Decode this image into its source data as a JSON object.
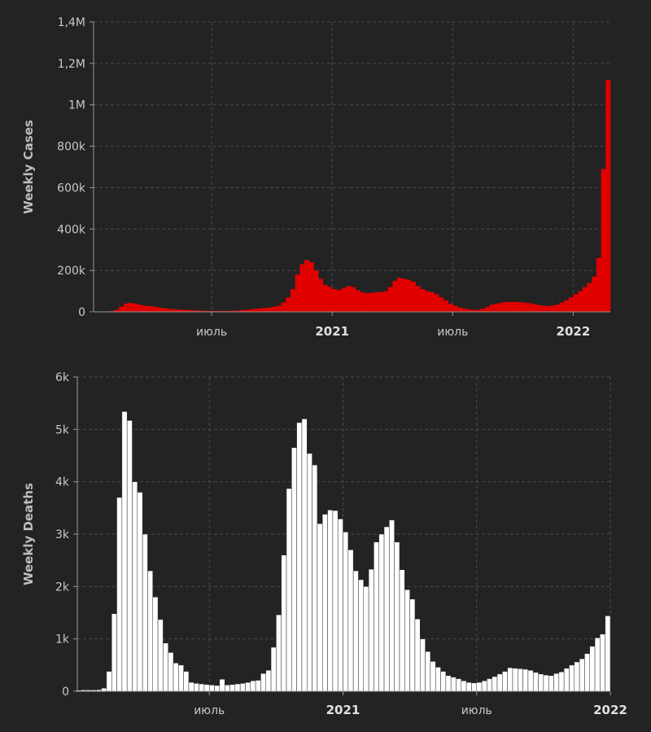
{
  "chart_data": [
    {
      "type": "bar",
      "ylabel": "Weekly Cases",
      "ylim": [
        0,
        1400000
      ],
      "y_ticks": [
        {
          "value": 0,
          "label": "0"
        },
        {
          "value": 200000,
          "label": "200k"
        },
        {
          "value": 400000,
          "label": "400k"
        },
        {
          "value": 600000,
          "label": "600k"
        },
        {
          "value": 800000,
          "label": "800k"
        },
        {
          "value": 1000000,
          "label": "1M"
        },
        {
          "value": 1200000,
          "label": "1,2M"
        },
        {
          "value": 1400000,
          "label": "1,4M"
        }
      ],
      "x_ticks": [
        {
          "week": 26,
          "label": "июль",
          "bold": false
        },
        {
          "week": 52,
          "label": "2021",
          "bold": true
        },
        {
          "week": 78,
          "label": "июль",
          "bold": false
        },
        {
          "week": 104,
          "label": "2022",
          "bold": true
        }
      ],
      "grid": true,
      "color": "#e00000",
      "values": [
        200,
        500,
        1000,
        2000,
        4000,
        10000,
        25000,
        40000,
        43000,
        40000,
        35000,
        30000,
        28000,
        26000,
        22000,
        18000,
        15000,
        13000,
        12000,
        10000,
        9000,
        8000,
        7000,
        6000,
        5000,
        4500,
        4000,
        4000,
        4500,
        5000,
        5500,
        6000,
        8000,
        10000,
        12000,
        15000,
        17000,
        19000,
        21000,
        24000,
        30000,
        45000,
        70000,
        110000,
        180000,
        230000,
        250000,
        240000,
        200000,
        160000,
        130000,
        120000,
        110000,
        105000,
        115000,
        125000,
        120000,
        105000,
        95000,
        90000,
        92000,
        95000,
        95000,
        100000,
        120000,
        150000,
        165000,
        160000,
        155000,
        145000,
        125000,
        110000,
        100000,
        95000,
        85000,
        70000,
        55000,
        40000,
        30000,
        22000,
        15000,
        12000,
        10000,
        10000,
        15000,
        25000,
        35000,
        40000,
        45000,
        47000,
        48000,
        48000,
        47000,
        45000,
        42000,
        38000,
        33000,
        30000,
        28000,
        30000,
        35000,
        45000,
        55000,
        70000,
        85000,
        100000,
        120000,
        140000,
        170000,
        260000,
        690000,
        1120000
      ]
    },
    {
      "type": "bar",
      "ylabel": "Weekly Deaths",
      "ylim": [
        0,
        6000
      ],
      "y_ticks": [
        {
          "value": 0,
          "label": "0"
        },
        {
          "value": 1000,
          "label": "1k"
        },
        {
          "value": 2000,
          "label": "2k"
        },
        {
          "value": 3000,
          "label": "3k"
        },
        {
          "value": 4000,
          "label": "4k"
        },
        {
          "value": 5000,
          "label": "5k"
        },
        {
          "value": 6000,
          "label": "6k"
        }
      ],
      "x_ticks": [
        {
          "week": 26,
          "label": "июль",
          "bold": false
        },
        {
          "week": 52,
          "label": "2021",
          "bold": true
        },
        {
          "week": 78,
          "label": "июль",
          "bold": false
        },
        {
          "week": 104,
          "label": "2022",
          "bold": true
        }
      ],
      "grid": true,
      "color": "#ffffff",
      "values": [
        20,
        25,
        25,
        25,
        30,
        60,
        380,
        1480,
        3700,
        5340,
        5170,
        4000,
        3800,
        3000,
        2300,
        1800,
        1370,
        920,
        740,
        540,
        500,
        380,
        170,
        150,
        140,
        130,
        120,
        110,
        230,
        120,
        130,
        140,
        150,
        170,
        200,
        210,
        340,
        400,
        840,
        1460,
        2600,
        3870,
        4650,
        5130,
        5200,
        4540,
        4320,
        3200,
        3380,
        3460,
        3450,
        3290,
        3040,
        2700,
        2300,
        2130,
        2000,
        2330,
        2850,
        3000,
        3140,
        3270,
        2850,
        2320,
        1940,
        1760,
        1380,
        1000,
        760,
        570,
        460,
        380,
        300,
        270,
        240,
        200,
        170,
        160,
        170,
        200,
        240,
        280,
        330,
        380,
        450,
        440,
        430,
        420,
        400,
        360,
        330,
        310,
        300,
        340,
        370,
        440,
        500,
        560,
        620,
        720,
        860,
        1020,
        1090,
        1440
      ]
    }
  ]
}
